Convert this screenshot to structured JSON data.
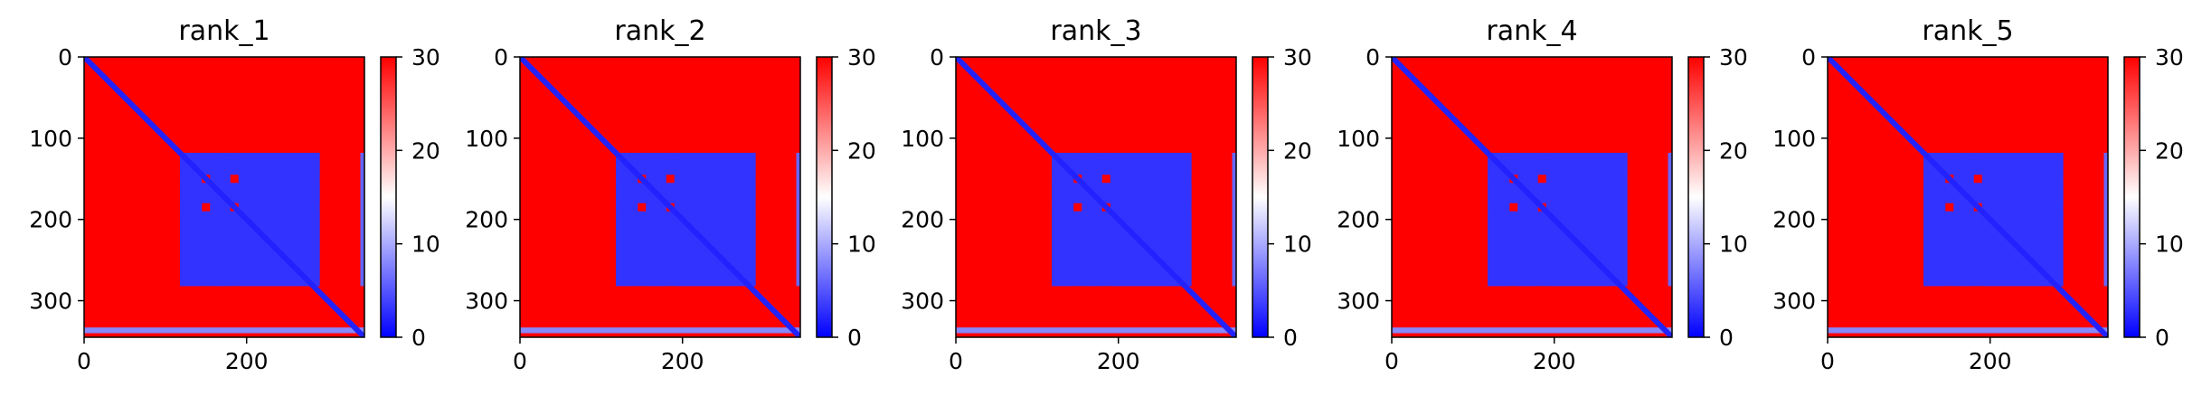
{
  "chart_data": [
    {
      "type": "heatmap",
      "title": "rank_1",
      "xlim": [
        0,
        345
      ],
      "ylim": [
        345,
        0
      ],
      "x_ticks": [
        "0",
        "200"
      ],
      "y_ticks": [
        "0",
        "100",
        "200",
        "300"
      ],
      "colorbar": {
        "range": [
          0,
          30
        ],
        "ticks": [
          "0",
          "10",
          "20",
          "30"
        ],
        "colormap": "bwr",
        "low_color": "#0000ff",
        "mid_color": "#ffffff",
        "high_color": "#ff0000"
      },
      "diagonal": {
        "value": 2
      },
      "blocks": [
        {
          "rows": [
            118,
            145
          ],
          "cols": [
            118,
            290
          ],
          "value": 3
        },
        {
          "rows": [
            155,
            180
          ],
          "cols": [
            118,
            290
          ],
          "value": 3
        },
        {
          "rows": [
            190,
            282
          ],
          "cols": [
            118,
            290
          ],
          "value": 3
        },
        {
          "rows": [
            118,
            282
          ],
          "cols": [
            118,
            145
          ],
          "value": 3
        },
        {
          "rows": [
            118,
            282
          ],
          "cols": [
            155,
            180
          ],
          "value": 3
        },
        {
          "rows": [
            118,
            282
          ],
          "cols": [
            190,
            290
          ],
          "value": 3
        },
        {
          "rows": [
            333,
            340
          ],
          "cols": [
            0,
            345
          ],
          "value": 8
        },
        {
          "rows": [
            118,
            282
          ],
          "cols": [
            340,
            345
          ],
          "value": 6
        }
      ],
      "background_value": 30
    },
    {
      "type": "heatmap",
      "title": "rank_2",
      "xlim": [
        0,
        345
      ],
      "ylim": [
        345,
        0
      ],
      "x_ticks": [
        "0",
        "200"
      ],
      "y_ticks": [
        "0",
        "100",
        "200",
        "300"
      ],
      "colorbar": {
        "range": [
          0,
          30
        ],
        "ticks": [
          "0",
          "10",
          "20",
          "30"
        ],
        "colormap": "bwr",
        "low_color": "#0000ff",
        "mid_color": "#ffffff",
        "high_color": "#ff0000"
      },
      "diagonal": {
        "value": 2
      },
      "blocks": [
        {
          "rows": [
            118,
            145
          ],
          "cols": [
            118,
            290
          ],
          "value": 3
        },
        {
          "rows": [
            155,
            180
          ],
          "cols": [
            118,
            290
          ],
          "value": 3
        },
        {
          "rows": [
            190,
            282
          ],
          "cols": [
            118,
            290
          ],
          "value": 3
        },
        {
          "rows": [
            118,
            282
          ],
          "cols": [
            118,
            145
          ],
          "value": 3
        },
        {
          "rows": [
            118,
            282
          ],
          "cols": [
            155,
            180
          ],
          "value": 3
        },
        {
          "rows": [
            118,
            282
          ],
          "cols": [
            190,
            290
          ],
          "value": 3
        },
        {
          "rows": [
            333,
            340
          ],
          "cols": [
            0,
            345
          ],
          "value": 8
        },
        {
          "rows": [
            118,
            282
          ],
          "cols": [
            340,
            345
          ],
          "value": 6
        }
      ],
      "background_value": 30
    },
    {
      "type": "heatmap",
      "title": "rank_3",
      "xlim": [
        0,
        345
      ],
      "ylim": [
        345,
        0
      ],
      "x_ticks": [
        "0",
        "200"
      ],
      "y_ticks": [
        "0",
        "100",
        "200",
        "300"
      ],
      "colorbar": {
        "range": [
          0,
          30
        ],
        "ticks": [
          "0",
          "10",
          "20",
          "30"
        ],
        "colormap": "bwr",
        "low_color": "#0000ff",
        "mid_color": "#ffffff",
        "high_color": "#ff0000"
      },
      "diagonal": {
        "value": 2
      },
      "blocks": [
        {
          "rows": [
            118,
            145
          ],
          "cols": [
            118,
            290
          ],
          "value": 3
        },
        {
          "rows": [
            155,
            180
          ],
          "cols": [
            118,
            290
          ],
          "value": 3
        },
        {
          "rows": [
            190,
            282
          ],
          "cols": [
            118,
            290
          ],
          "value": 3
        },
        {
          "rows": [
            118,
            282
          ],
          "cols": [
            118,
            145
          ],
          "value": 3
        },
        {
          "rows": [
            118,
            282
          ],
          "cols": [
            155,
            180
          ],
          "value": 3
        },
        {
          "rows": [
            118,
            282
          ],
          "cols": [
            190,
            290
          ],
          "value": 3
        },
        {
          "rows": [
            333,
            340
          ],
          "cols": [
            0,
            345
          ],
          "value": 8
        },
        {
          "rows": [
            118,
            282
          ],
          "cols": [
            340,
            345
          ],
          "value": 6
        }
      ],
      "background_value": 30
    },
    {
      "type": "heatmap",
      "title": "rank_4",
      "xlim": [
        0,
        345
      ],
      "ylim": [
        345,
        0
      ],
      "x_ticks": [
        "0",
        "200"
      ],
      "y_ticks": [
        "0",
        "100",
        "200",
        "300"
      ],
      "colorbar": {
        "range": [
          0,
          30
        ],
        "ticks": [
          "0",
          "10",
          "20",
          "30"
        ],
        "colormap": "bwr",
        "low_color": "#0000ff",
        "mid_color": "#ffffff",
        "high_color": "#ff0000"
      },
      "diagonal": {
        "value": 2
      },
      "blocks": [
        {
          "rows": [
            118,
            145
          ],
          "cols": [
            118,
            290
          ],
          "value": 3
        },
        {
          "rows": [
            155,
            180
          ],
          "cols": [
            118,
            290
          ],
          "value": 3
        },
        {
          "rows": [
            190,
            282
          ],
          "cols": [
            118,
            290
          ],
          "value": 3
        },
        {
          "rows": [
            118,
            282
          ],
          "cols": [
            118,
            145
          ],
          "value": 3
        },
        {
          "rows": [
            118,
            282
          ],
          "cols": [
            155,
            180
          ],
          "value": 3
        },
        {
          "rows": [
            118,
            282
          ],
          "cols": [
            190,
            290
          ],
          "value": 3
        },
        {
          "rows": [
            333,
            340
          ],
          "cols": [
            0,
            345
          ],
          "value": 8
        },
        {
          "rows": [
            118,
            282
          ],
          "cols": [
            340,
            345
          ],
          "value": 6
        }
      ],
      "background_value": 30
    },
    {
      "type": "heatmap",
      "title": "rank_5",
      "xlim": [
        0,
        345
      ],
      "ylim": [
        345,
        0
      ],
      "x_ticks": [
        "0",
        "200"
      ],
      "y_ticks": [
        "0",
        "100",
        "200",
        "300"
      ],
      "colorbar": {
        "range": [
          0,
          30
        ],
        "ticks": [
          "0",
          "10",
          "20",
          "30"
        ],
        "colormap": "bwr",
        "low_color": "#0000ff",
        "mid_color": "#ffffff",
        "high_color": "#ff0000"
      },
      "diagonal": {
        "value": 2
      },
      "blocks": [
        {
          "rows": [
            118,
            145
          ],
          "cols": [
            118,
            290
          ],
          "value": 3
        },
        {
          "rows": [
            155,
            180
          ],
          "cols": [
            118,
            290
          ],
          "value": 3
        },
        {
          "rows": [
            190,
            282
          ],
          "cols": [
            118,
            290
          ],
          "value": 3
        },
        {
          "rows": [
            118,
            282
          ],
          "cols": [
            118,
            145
          ],
          "value": 3
        },
        {
          "rows": [
            118,
            282
          ],
          "cols": [
            155,
            180
          ],
          "value": 3
        },
        {
          "rows": [
            118,
            282
          ],
          "cols": [
            190,
            290
          ],
          "value": 3
        },
        {
          "rows": [
            333,
            340
          ],
          "cols": [
            0,
            345
          ],
          "value": 8
        },
        {
          "rows": [
            118,
            282
          ],
          "cols": [
            340,
            345
          ],
          "value": 6
        }
      ],
      "background_value": 30
    }
  ]
}
